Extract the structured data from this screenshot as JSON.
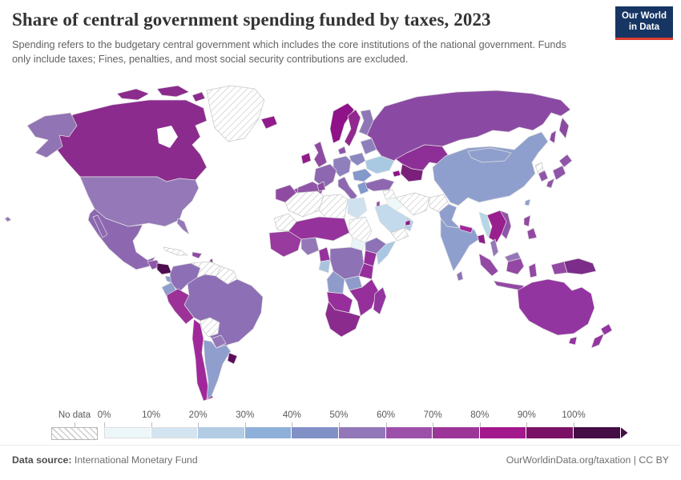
{
  "header": {
    "title": "Share of central government spending funded by taxes, 2023",
    "subtitle": "Spending refers to the budgetary central government which includes the core institutions of the national government. Funds only include taxes; Fines, penalties, and most social security contributions are excluded.",
    "logo": {
      "line1": "Our World",
      "line2": "in Data",
      "bg_color": "#163562",
      "accent_color": "#dc3c30"
    }
  },
  "legend": {
    "no_data_label": "No data",
    "bands": [
      {
        "label": "0%",
        "color": "#edf7f9"
      },
      {
        "label": "10%",
        "color": "#d4e5f1"
      },
      {
        "label": "20%",
        "color": "#b2cce4"
      },
      {
        "label": "30%",
        "color": "#8fb0d8"
      },
      {
        "label": "40%",
        "color": "#8191c6"
      },
      {
        "label": "50%",
        "color": "#9278b8"
      },
      {
        "label": "60%",
        "color": "#9d50a9"
      },
      {
        "label": "70%",
        "color": "#9d3598"
      },
      {
        "label": "80%",
        "color": "#a3188d"
      },
      {
        "label": "90%",
        "color": "#7b1166"
      },
      {
        "label": "100%",
        "color": "#440d45"
      }
    ]
  },
  "map": {
    "border_color": "#e0e0e0",
    "no_data_border": "#c6c6c6",
    "regions": {
      "greenland": {
        "name": "Greenland",
        "band": "No data",
        "color": "no-data"
      },
      "canada": {
        "name": "Canada",
        "band": "80-90%",
        "color": "#8b2b8d"
      },
      "arctic-islands": {
        "name": "Canada (Arctic islands)",
        "band": "80-90%",
        "color": "#8b2b8d"
      },
      "alaska": {
        "name": "United States (Alaska)",
        "band": "50-60%",
        "color": "#9174b4"
      },
      "usa": {
        "name": "United States",
        "band": "50-60%",
        "color": "#9478b8"
      },
      "florida": {
        "name": "United States (Florida)",
        "band": "50-60%",
        "color": "#9478b8"
      },
      "hawaii": {
        "name": "United States (Hawaii)",
        "band": "50-60%",
        "color": "#9478b8"
      },
      "mexico": {
        "name": "Mexico",
        "band": "50-60%",
        "color": "#8d68b0"
      },
      "baja": {
        "name": "Mexico (Baja)",
        "band": "50-60%",
        "color": "#8d68b0"
      },
      "guatemala": {
        "name": "Guatemala",
        "band": "60-70%",
        "color": "#8f55a8"
      },
      "honduras-nicaragua": {
        "name": "Honduras / Nicaragua",
        "band": "100%+",
        "color": "#4f0c50"
      },
      "costa-rica-panama": {
        "name": "Costa Rica / Panama",
        "band": "40-50%",
        "color": "#8f9ecd"
      },
      "cuba": {
        "name": "Cuba",
        "band": "No data",
        "color": "no-data"
      },
      "hispaniola": {
        "name": "Haiti / Dominican Republic",
        "band": "60-70%",
        "color": "#8f4ba1"
      },
      "lesser-antilles": {
        "name": "Lesser Antilles",
        "band": "70-80%",
        "color": "#9335a0"
      },
      "colombia": {
        "name": "Colombia",
        "band": "50-60%",
        "color": "#8d6fb5"
      },
      "venezuela": {
        "name": "Venezuela",
        "band": "No data",
        "color": "no-data"
      },
      "guyanas": {
        "name": "Guyana / Suriname",
        "band": "No data",
        "color": "no-data"
      },
      "ecuador": {
        "name": "Ecuador",
        "band": "40-50%",
        "color": "#8f9ecd"
      },
      "peru": {
        "name": "Peru",
        "band": "70-80%",
        "color": "#9c3198"
      },
      "brazil": {
        "name": "Brazil",
        "band": "50-60%",
        "color": "#8d6fb5"
      },
      "bolivia": {
        "name": "Bolivia",
        "band": "No data",
        "color": "no-data"
      },
      "paraguay": {
        "name": "Paraguay",
        "band": "50-60%",
        "color": "#9577b7"
      },
      "chile": {
        "name": "Chile",
        "band": "70-80%",
        "color": "#a0289a"
      },
      "argentina": {
        "name": "Argentina",
        "band": "40-50%",
        "color": "#8f9ecd"
      },
      "uruguay": {
        "name": "Uruguay",
        "band": "100%+",
        "color": "#5c0d5c"
      },
      "iceland": {
        "name": "Iceland",
        "band": "80-90%",
        "color": "#921b8b"
      },
      "ireland": {
        "name": "Ireland",
        "band": "80-90%",
        "color": "#921b8b"
      },
      "uk": {
        "name": "United Kingdom",
        "band": "60-70%",
        "color": "#8f4ba1"
      },
      "norway": {
        "name": "Norway",
        "band": "90-100%",
        "color": "#8f1288"
      },
      "sweden": {
        "name": "Sweden",
        "band": "80-90%",
        "color": "#92278f"
      },
      "finland": {
        "name": "Finland",
        "band": "50-60%",
        "color": "#8f77b7"
      },
      "denmark": {
        "name": "Denmark",
        "band": "60-70%",
        "color": "#8f55a8"
      },
      "germany": {
        "name": "Germany / Benelux",
        "band": "40-50%",
        "color": "#8f80bd"
      },
      "france": {
        "name": "France",
        "band": "50-60%",
        "color": "#8d68b0"
      },
      "spain": {
        "name": "Spain",
        "band": "60-70%",
        "color": "#9055a7"
      },
      "portugal": {
        "name": "Portugal",
        "band": "60-70%",
        "color": "#8f4ba1"
      },
      "italy": {
        "name": "Italy",
        "band": "50-60%",
        "color": "#8d68b0"
      },
      "poland-czechia": {
        "name": "Poland / Central Europe",
        "band": "40-50%",
        "color": "#8b87c0"
      },
      "belarus-baltics": {
        "name": "Belarus / Baltics",
        "band": "50-60%",
        "color": "#8f80bd"
      },
      "ukraine": {
        "name": "Ukraine",
        "band": "20-30%",
        "color": "#a9c9e3"
      },
      "romania-balkans": {
        "name": "Romania / Balkans",
        "band": "30-40%",
        "color": "#8398cb"
      },
      "greece": {
        "name": "Greece",
        "band": "30-40%",
        "color": "#8398cb"
      },
      "turkey": {
        "name": "Turkey",
        "band": "50-60%",
        "color": "#8d68b0"
      },
      "russia": {
        "name": "Russia",
        "band": "60-70%",
        "color": "#8a4aa3"
      },
      "kamchatka": {
        "name": "Russia (Kamchatka)",
        "band": "60-70%",
        "color": "#8a4aa3"
      },
      "sakhalin": {
        "name": "Russia (Sakhalin)",
        "band": "60-70%",
        "color": "#8a4aa3"
      },
      "kazakhstan": {
        "name": "Kazakhstan",
        "band": "80-90%",
        "color": "#8d2f96"
      },
      "central-asia": {
        "name": "Uzbekistan / Turkmenistan",
        "band": "90-100%",
        "color": "#7a1f7a"
      },
      "caucasus": {
        "name": "Georgia / Azerbaijan",
        "band": "90-100%",
        "color": "#8f1288"
      },
      "syria": {
        "name": "Syria",
        "band": "No data",
        "color": "no-data"
      },
      "iraq": {
        "name": "Iraq",
        "band": "0-10%",
        "color": "#eef8f9"
      },
      "iran": {
        "name": "Iran",
        "band": "No data",
        "color": "no-data"
      },
      "afghanistan": {
        "name": "Afghanistan",
        "band": "No data",
        "color": "no-data"
      },
      "israel": {
        "name": "Israel",
        "band": "60-70%",
        "color": "#8f4ba1"
      },
      "saudi-arabia": {
        "name": "Saudi Arabia",
        "band": "10-20%",
        "color": "#c3d9ec"
      },
      "yemen": {
        "name": "Yemen",
        "band": "No data",
        "color": "no-data"
      },
      "oman": {
        "name": "Oman",
        "band": "20-30%",
        "color": "#b5cde4"
      },
      "uae": {
        "name": "United Arab Emirates",
        "band": "90-100%",
        "color": "#8f1b89"
      },
      "pakistan": {
        "name": "Pakistan",
        "band": "40-50%",
        "color": "#8f9fcd"
      },
      "india": {
        "name": "India",
        "band": "40-50%",
        "color": "#8f9fcd"
      },
      "nepal": {
        "name": "Nepal",
        "band": "70-80%",
        "color": "#a0289a"
      },
      "bangladesh": {
        "name": "Bangladesh",
        "band": "90-100%",
        "color": "#8f1b89"
      },
      "sri-lanka": {
        "name": "Sri Lanka",
        "band": "50-60%",
        "color": "#8f72b5"
      },
      "china": {
        "name": "China",
        "band": "40-50%",
        "color": "#8f9fcd"
      },
      "mongolia": {
        "name": "Mongolia",
        "band": "40-50%",
        "color": "#8f9fcd"
      },
      "north-korea": {
        "name": "North Korea",
        "band": "No data",
        "color": "no-data"
      },
      "south-korea": {
        "name": "South Korea",
        "band": "60-70%",
        "color": "#8f55a8"
      },
      "japan": {
        "name": "Japan",
        "band": "60-70%",
        "color": "#8f55a8"
      },
      "taiwan": {
        "name": "Taiwan",
        "band": "40-50%",
        "color": "#8f9fcd"
      },
      "myanmar": {
        "name": "Myanmar",
        "band": "10-20%",
        "color": "#b5d7e6"
      },
      "thailand-indochina": {
        "name": "Thailand / Laos / Cambodia",
        "band": "80-90%",
        "color": "#991f8f"
      },
      "vietnam": {
        "name": "Vietnam",
        "band": "60-70%",
        "color": "#8f55a8"
      },
      "malay-peninsula": {
        "name": "Malaysia (peninsula)",
        "band": "50-60%",
        "color": "#9577b7"
      },
      "malaysia-borneo": {
        "name": "Malaysia (Borneo)",
        "band": "50-60%",
        "color": "#9577b7"
      },
      "indonesia-borneo": {
        "name": "Indonesia (Kalimantan)",
        "band": "60-70%",
        "color": "#9349a3"
      },
      "sumatra": {
        "name": "Indonesia (Sumatra)",
        "band": "60-70%",
        "color": "#9349a3"
      },
      "java": {
        "name": "Indonesia (Java)",
        "band": "60-70%",
        "color": "#9349a3"
      },
      "sulawesi": {
        "name": "Indonesia (Sulawesi)",
        "band": "60-70%",
        "color": "#9349a3"
      },
      "philippines-north": {
        "name": "Philippines (Luzon)",
        "band": "60-70%",
        "color": "#9349a3"
      },
      "philippines-south": {
        "name": "Philippines (Mindanao)",
        "band": "60-70%",
        "color": "#9349a3"
      },
      "west-papua": {
        "name": "Indonesia (Papua)",
        "band": "60-70%",
        "color": "#9349a3"
      },
      "papua-new-guinea": {
        "name": "Papua New Guinea",
        "band": "90-100%",
        "color": "#7c2d8a"
      },
      "australia": {
        "name": "Australia",
        "band": "70-80%",
        "color": "#9335a0"
      },
      "tasmania": {
        "name": "Australia (Tasmania)",
        "band": "70-80%",
        "color": "#9335a0"
      },
      "new-zealand-north": {
        "name": "New Zealand (North Island)",
        "band": "70-80%",
        "color": "#9335a0"
      },
      "new-zealand-south": {
        "name": "New Zealand (South Island)",
        "band": "70-80%",
        "color": "#9335a0"
      },
      "morocco": {
        "name": "Morocco",
        "band": "60-70%",
        "color": "#8f4ba1"
      },
      "tunisia": {
        "name": "Tunisia",
        "band": "60-70%",
        "color": "#8f4ba1"
      },
      "algeria": {
        "name": "Algeria",
        "band": "No data",
        "color": "no-data"
      },
      "libya": {
        "name": "Libya",
        "band": "No data",
        "color": "no-data"
      },
      "egypt": {
        "name": "Egypt",
        "band": "10-20%",
        "color": "#cfe1ef"
      },
      "mauritania": {
        "name": "Mauritania",
        "band": "No data",
        "color": "no-data"
      },
      "sahel": {
        "name": "Mali / Niger / Chad",
        "band": "70-80%",
        "color": "#95329b"
      },
      "sudan": {
        "name": "Sudan",
        "band": "No data",
        "color": "no-data"
      },
      "west-africa": {
        "name": "Senegal / Guinea / Ghana",
        "band": "70-80%",
        "color": "#983a9e"
      },
      "nigeria": {
        "name": "Nigeria",
        "band": "50-60%",
        "color": "#9577b7"
      },
      "cameroon": {
        "name": "Cameroon",
        "band": "70-80%",
        "color": "#95329b"
      },
      "south-sudan": {
        "name": "South Sudan",
        "band": "0-10%",
        "color": "#e8f4f8"
      },
      "ethiopia": {
        "name": "Ethiopia",
        "band": "50-60%",
        "color": "#8d72b6"
      },
      "somalia": {
        "name": "Somalia",
        "band": "20-30%",
        "color": "#a9c7e2"
      },
      "kenya": {
        "name": "Kenya",
        "band": "70-80%",
        "color": "#962f9b"
      },
      "drc": {
        "name": "Democratic Republic of Congo",
        "band": "50-60%",
        "color": "#8d72b6"
      },
      "congo-gabon": {
        "name": "Congo / Gabon",
        "band": "20-30%",
        "color": "#aac4e0"
      },
      "tanzania": {
        "name": "Tanzania",
        "band": "70-80%",
        "color": "#962f9b"
      },
      "angola": {
        "name": "Angola",
        "band": "40-50%",
        "color": "#8f9bca"
      },
      "zambia": {
        "name": "Zambia",
        "band": "40-50%",
        "color": "#8f9bca"
      },
      "mozambique-zimbabwe": {
        "name": "Mozambique / Zimbabwe",
        "band": "70-80%",
        "color": "#962f9b"
      },
      "namibia-botswana": {
        "name": "Namibia / Botswana",
        "band": "70-80%",
        "color": "#962f9b"
      },
      "south-africa": {
        "name": "South Africa",
        "band": "80-90%",
        "color": "#8b2b8d"
      },
      "madagascar": {
        "name": "Madagascar",
        "band": "70-80%",
        "color": "#9335a0"
      }
    }
  },
  "footer": {
    "datasource_label": "Data source:",
    "datasource_value": "International Monetary Fund",
    "link": "OurWorldinData.org/taxation",
    "divider": "|",
    "license": "CC BY"
  }
}
